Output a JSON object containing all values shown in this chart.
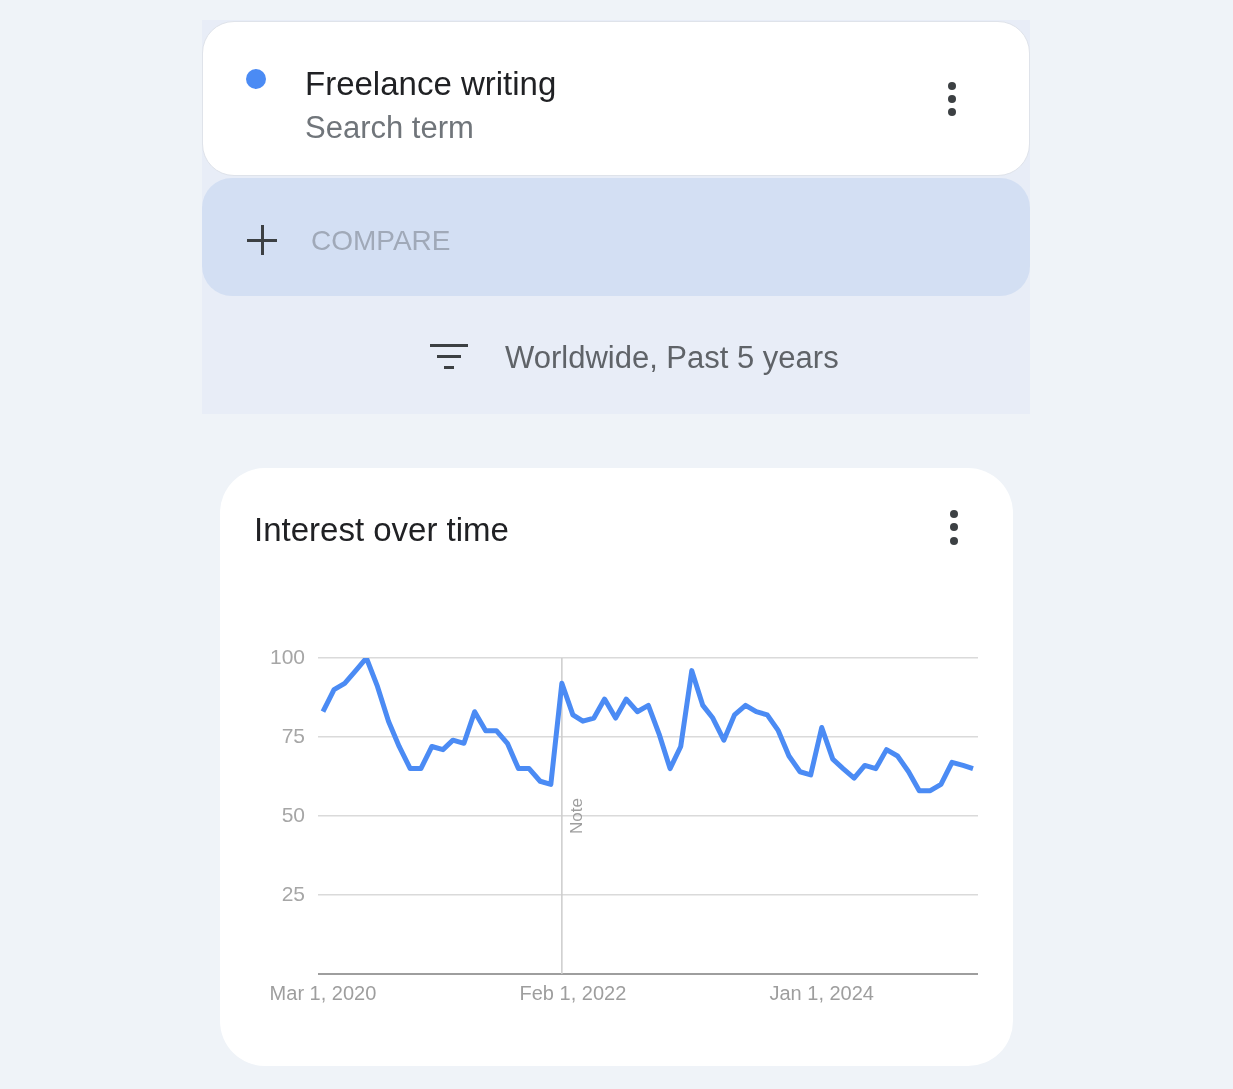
{
  "chart_data": {
    "type": "line",
    "title": "Interest over time",
    "subtitle": "Worldwide, Past 5 years",
    "annotations": [
      "Search term",
      "COMPARE"
    ],
    "x": [
      "2020-03",
      "2020-04",
      "2020-05",
      "2020-06",
      "2020-07",
      "2020-08",
      "2020-09",
      "2020-10",
      "2020-11",
      "2020-12",
      "2021-01",
      "2021-02",
      "2021-03",
      "2021-04",
      "2021-05",
      "2021-06",
      "2021-07",
      "2021-08",
      "2021-09",
      "2021-10",
      "2021-11",
      "2021-12",
      "2022-01",
      "2022-02",
      "2022-03",
      "2022-04",
      "2022-05",
      "2022-06",
      "2022-07",
      "2022-08",
      "2022-09",
      "2022-10",
      "2022-11",
      "2022-12",
      "2023-01",
      "2023-02",
      "2023-03",
      "2023-04",
      "2023-05",
      "2023-06",
      "2023-07",
      "2023-08",
      "2023-09",
      "2023-10",
      "2023-11",
      "2023-12",
      "2024-01",
      "2024-02",
      "2024-03",
      "2024-04",
      "2024-05",
      "2024-06",
      "2024-07",
      "2024-08",
      "2024-09",
      "2024-10",
      "2024-11",
      "2024-12",
      "2025-01",
      "2025-02",
      "2025-03"
    ],
    "series": [
      {
        "name": "Freelance writing",
        "color": "#4b8bf4",
        "values": [
          83,
          90,
          92,
          96,
          100,
          91,
          80,
          72,
          65,
          65,
          72,
          71,
          74,
          73,
          83,
          77,
          77,
          73,
          65,
          65,
          61,
          60,
          92,
          82,
          80,
          81,
          87,
          81,
          87,
          83,
          85,
          76,
          65,
          72,
          96,
          85,
          81,
          74,
          82,
          85,
          83,
          82,
          77,
          69,
          64,
          63,
          78,
          68,
          65,
          62,
          66,
          65,
          71,
          69,
          64,
          58,
          58,
          60,
          67,
          66,
          65
        ]
      }
    ],
    "xlim": [
      "2020-02-16",
      "2025-03-15"
    ],
    "xticks": [
      {
        "value": "2020-03-01",
        "label": "Mar 1, 2020"
      },
      {
        "value": "2022-02-01",
        "label": "Feb 1, 2022"
      },
      {
        "value": "2024-01-01",
        "label": "Jan 1, 2024"
      }
    ],
    "ylim": [
      0,
      100
    ],
    "yticks": [
      25,
      50,
      75,
      100
    ],
    "ref_lines": [
      {
        "axis": "x",
        "value": "2022-01-01",
        "label": "Note",
        "color": "#cccccc"
      }
    ],
    "grid": "y",
    "legend": "top left"
  }
}
